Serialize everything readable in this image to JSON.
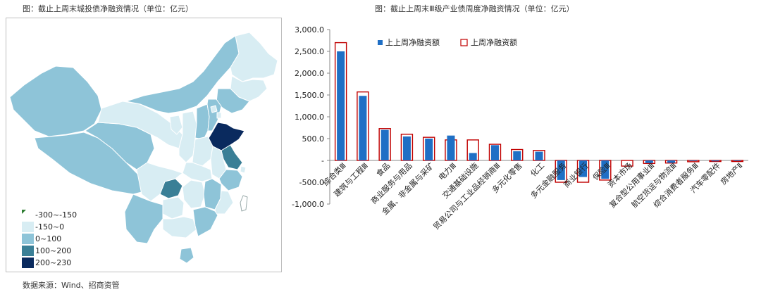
{
  "left_chart": {
    "title": "图：截止上周末城投债净融资情况（单位：亿元）",
    "legend": [
      {
        "label": "-300~-150",
        "color": "#ffffff"
      },
      {
        "label": "-150~0",
        "color": "#d8edf3"
      },
      {
        "label": "0~100",
        "color": "#8ec4d8"
      },
      {
        "label": "100~200",
        "color": "#3a7f96"
      },
      {
        "label": "200~230",
        "color": "#0a2a5e"
      }
    ]
  },
  "source": "数据来源：Wind、招商资管",
  "chart_data": {
    "type": "bar",
    "title": "图：截止上周末Ⅲ级产业债周度净融资情况（单位：亿元）",
    "categories": [
      "综合类Ⅲ",
      "建筑与工程Ⅲ",
      "食品",
      "商业服务与用品",
      "金属、非金属与采矿",
      "电力Ⅲ",
      "交通基础设施",
      "贸易公司与工业品经销商Ⅲ",
      "多元化零售",
      "化工",
      "多元金融服务",
      "商业银行",
      "保险Ⅲ",
      "资本市场",
      "复合型公用事业Ⅲ",
      "航空货运与物流Ⅲ",
      "综合消费者服务Ⅲ",
      "汽车零配件",
      "房地产Ⅱ"
    ],
    "series": [
      {
        "name": "上上周净融资额",
        "color": "#1f6fc5",
        "values": [
          2500,
          1480,
          700,
          550,
          500,
          570,
          170,
          350,
          210,
          200,
          -450,
          -380,
          -420,
          0,
          -60,
          -55,
          -15,
          -20,
          -15
        ]
      },
      {
        "name": "上周净融资额",
        "color": "#c00000",
        "values": [
          2700,
          1570,
          730,
          600,
          530,
          470,
          470,
          370,
          250,
          230,
          -500,
          -500,
          -450,
          -130,
          -70,
          -60,
          -30,
          -25,
          -25
        ]
      }
    ],
    "y_ticks": [
      "3,000.0",
      "2,500.0",
      "2,000.0",
      "1,500.0",
      "1,000.0",
      "500.0",
      "-",
      "-500.0",
      "-1,000.0"
    ],
    "ylim": [
      -1000,
      3000
    ],
    "legend_position": "top-center"
  }
}
